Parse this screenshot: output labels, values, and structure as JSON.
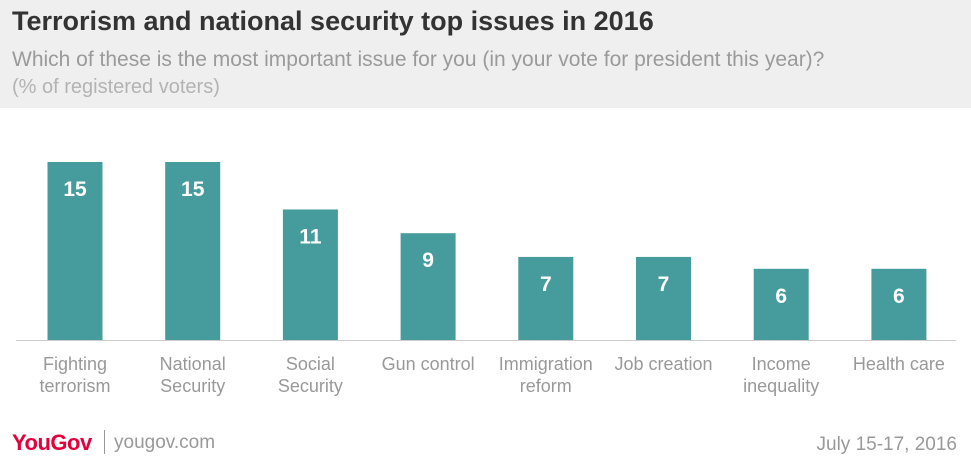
{
  "header": {
    "title": "Terrorism and national security top issues in 2016",
    "subtitle": "Which of these is the most important issue for you (in your vote for president this year)?",
    "subtitle2": "(% of registered voters)"
  },
  "footer": {
    "brand": "YouGov",
    "url": "yougov.com",
    "date": "July 15-17, 2016"
  },
  "colors": {
    "bar": "#469c9c",
    "axis": "#cccccc",
    "label": "#999999",
    "value": "#ffffff",
    "brand": "#e4003b"
  },
  "chart_data": {
    "type": "bar",
    "categories": [
      [
        "Fighting",
        "terrorism"
      ],
      [
        "National",
        "Security"
      ],
      [
        "Social",
        "Security"
      ],
      [
        "Gun control"
      ],
      [
        "Immigration",
        "reform"
      ],
      [
        "Job creation"
      ],
      [
        "Income",
        "inequality"
      ],
      [
        "Health care"
      ]
    ],
    "values": [
      15,
      15,
      11,
      9,
      7,
      7,
      6,
      6
    ],
    "ylim": [
      0,
      15
    ],
    "grid": false,
    "legend": "none"
  }
}
